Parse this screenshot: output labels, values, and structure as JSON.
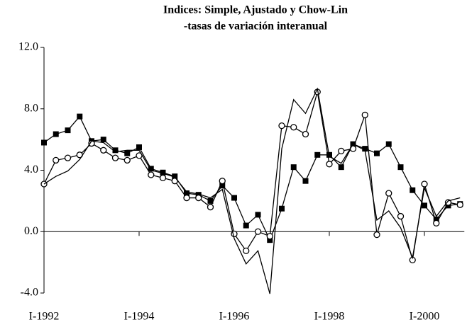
{
  "chart_data": {
    "type": "line",
    "title": "Indices: Simple, Ajustado y Chow-Lin",
    "subtitle": "-tasas de variación interanual",
    "categories": [
      "I-1992",
      null,
      null,
      null,
      null,
      null,
      null,
      null,
      "I-1994",
      null,
      null,
      null,
      null,
      null,
      null,
      null,
      "I-1996",
      null,
      null,
      null,
      null,
      null,
      null,
      null,
      "I-1998",
      null,
      null,
      null,
      null,
      null,
      null,
      null,
      "I-2000",
      null,
      null,
      null
    ],
    "series": [
      {
        "color": "#000000",
        "marker": "square",
        "values": [
          5.8,
          6.35,
          6.6,
          7.5,
          5.9,
          6.0,
          5.3,
          5.1,
          5.5,
          4.1,
          3.85,
          3.6,
          2.5,
          2.4,
          2.0,
          3.0,
          2.2,
          0.4,
          1.1,
          -0.55,
          1.5,
          4.2,
          3.3,
          5.0,
          5.0,
          4.2,
          5.7,
          5.4,
          5.1,
          5.7,
          4.2,
          2.7,
          1.7,
          0.8,
          1.7,
          1.8
        ]
      },
      {
        "color": "#000000",
        "marker": "circle",
        "values": [
          3.1,
          4.65,
          4.8,
          5.0,
          5.75,
          5.3,
          4.8,
          4.65,
          4.95,
          3.7,
          3.5,
          3.3,
          2.2,
          2.2,
          1.6,
          3.3,
          -0.15,
          -1.25,
          0.0,
          -0.3,
          6.9,
          6.8,
          6.35,
          9.1,
          4.4,
          5.25,
          5.4,
          7.6,
          -0.2,
          2.5,
          1.0,
          -1.85,
          3.1,
          0.55,
          1.9,
          1.75
        ]
      },
      {
        "color": "#000000",
        "marker": "none",
        "values": [
          3.1,
          3.6,
          3.95,
          4.7,
          5.9,
          5.8,
          5.2,
          5.3,
          5.3,
          4.0,
          3.8,
          3.55,
          2.6,
          2.45,
          2.2,
          2.75,
          -0.45,
          -2.1,
          -1.25,
          -4.05,
          5.4,
          8.6,
          7.7,
          9.3,
          4.9,
          4.45,
          5.7,
          5.3,
          0.75,
          1.35,
          0.25,
          -1.7,
          2.85,
          1.0,
          2.0,
          2.2
        ]
      }
    ],
    "ylim": [
      -4,
      12
    ],
    "yticks": [
      {
        "value": -4,
        "label": "-4.0"
      },
      {
        "value": 0,
        "label": "0.0"
      },
      {
        "value": 4,
        "label": "4.0"
      },
      {
        "value": 8,
        "label": "8.0"
      },
      {
        "value": 12,
        "label": "12.0"
      }
    ],
    "grid": false
  }
}
